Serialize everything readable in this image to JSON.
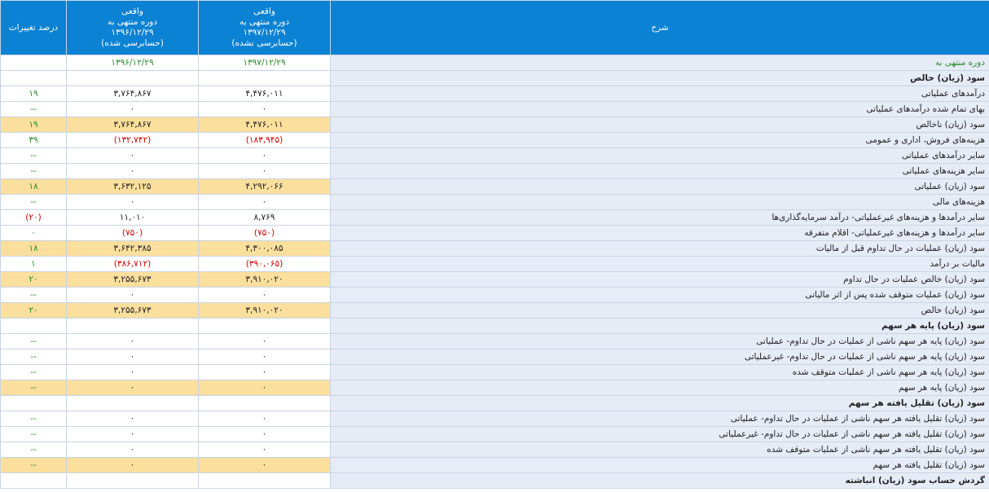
{
  "header": {
    "change_label": "درصد تغییرات",
    "col_prev": {
      "line1": "واقعی",
      "line2": "دوره منتهی به",
      "line3": "۱۳۹۶/۱۲/۲۹",
      "line4": "(حسابرسی شده)"
    },
    "col_curr": {
      "line1": "واقعی",
      "line2": "دوره منتهی به",
      "line3": "۱۳۹۷/۱۲/۲۹",
      "line4": "(حسابرسی نشده)"
    },
    "desc_label": "شرح"
  },
  "rows": [
    {
      "label": "دوره منتهی به",
      "curr": "۱۳۹۷/۱۲/۲۹",
      "prev": "۱۳۹۶/۱۲/۲۹",
      "change": "",
      "type": "period"
    },
    {
      "label": "سود (زیان) خالص",
      "curr": "",
      "prev": "",
      "change": "",
      "type": "bold"
    },
    {
      "label": "درآمدهای عملیاتی",
      "curr": "۴,۴۷۶,۰۱۱",
      "prev": "۳,۷۶۴,۸۶۷",
      "change": "۱۹",
      "type": "normal"
    },
    {
      "label": "بهای تمام شده درآمدهای عملیاتی",
      "curr": "۰",
      "prev": "۰",
      "change": "--",
      "type": "normal"
    },
    {
      "label": "سود (زیان) ناخالص",
      "curr": "۴,۴۷۶,۰۱۱",
      "prev": "۳,۷۶۴,۸۶۷",
      "change": "۱۹",
      "type": "hl"
    },
    {
      "label": "هزینه‌های فروش، اداری و عمومی",
      "curr": "(۱۸۳,۹۴۵)",
      "prev": "(۱۳۲,۷۴۲)",
      "change": "۳۹",
      "type": "normal"
    },
    {
      "label": "سایر درآمدهای عملیاتی",
      "curr": "۰",
      "prev": "۰",
      "change": "--",
      "type": "normal"
    },
    {
      "label": "سایر هزینه‌های عملیاتی",
      "curr": "۰",
      "prev": "۰",
      "change": "--",
      "type": "normal"
    },
    {
      "label": "سود (زیان) عملیاتی",
      "curr": "۴,۲۹۲,۰۶۶",
      "prev": "۳,۶۳۲,۱۲۵",
      "change": "۱۸",
      "type": "hl"
    },
    {
      "label": "هزینه‌های مالی",
      "curr": "۰",
      "prev": "۰",
      "change": "--",
      "type": "normal"
    },
    {
      "label": "سایر درآمدها و هزینه‌های غیرعملیاتی- درآمد سرمایه‌گذاری‌ها",
      "curr": "۸,۷۶۹",
      "prev": "۱۱,۰۱۰",
      "change": "(۲۰)",
      "type": "normal"
    },
    {
      "label": "سایر درآمدها و هزینه‌های غیرعملیاتی- اقلام متفرقه",
      "curr": "(۷۵۰)",
      "prev": "(۷۵۰)",
      "change": "۰",
      "type": "normal"
    },
    {
      "label": "سود (زیان) عملیات در حال تداوم قبل از مالیات",
      "curr": "۴,۳۰۰,۰۸۵",
      "prev": "۳,۶۴۲,۳۸۵",
      "change": "۱۸",
      "type": "hl"
    },
    {
      "label": "مالیات بر درآمد",
      "curr": "(۳۹۰,۰۶۵)",
      "prev": "(۳۸۶,۷۱۲)",
      "change": "۱",
      "type": "normal"
    },
    {
      "label": "سود (زیان) خالص عملیات در حال تداوم",
      "curr": "۳,۹۱۰,۰۲۰",
      "prev": "۳,۲۵۵,۶۷۳",
      "change": "۲۰",
      "type": "hl"
    },
    {
      "label": "سود (زیان) عملیات متوقف شده پس از اثر مالیاتی",
      "curr": "۰",
      "prev": "۰",
      "change": "--",
      "type": "normal"
    },
    {
      "label": "سود (زیان) خالص",
      "curr": "۳,۹۱۰,۰۲۰",
      "prev": "۳,۲۵۵,۶۷۳",
      "change": "۲۰",
      "type": "hl"
    },
    {
      "label": "سود (زیان) پایه هر سهم",
      "curr": "",
      "prev": "",
      "change": "",
      "type": "bold"
    },
    {
      "label": "سود (زیان) پایه هر سهم ناشی از عملیات در حال تداوم- عملیاتی",
      "curr": "۰",
      "prev": "۰",
      "change": "--",
      "type": "normal"
    },
    {
      "label": "سود (زیان) پایه هر سهم ناشی از عملیات در حال تداوم- غیرعملیاتی",
      "curr": "۰",
      "prev": "۰",
      "change": "--",
      "type": "normal"
    },
    {
      "label": "سود (زیان) پایه هر سهم ناشی از عملیات متوقف شده",
      "curr": "۰",
      "prev": "۰",
      "change": "--",
      "type": "normal"
    },
    {
      "label": "سود (زیان) پایه هر سهم",
      "curr": "۰",
      "prev": "۰",
      "change": "--",
      "type": "hl"
    },
    {
      "label": "سود (زیان) تقلیل یافته هر سهم",
      "curr": "",
      "prev": "",
      "change": "",
      "type": "bold"
    },
    {
      "label": "سود (زیان) تقلیل یافته هر سهم ناشی از عملیات در حال تداوم- عملیاتی",
      "curr": "۰",
      "prev": "۰",
      "change": "--",
      "type": "normal"
    },
    {
      "label": "سود (زیان) تقلیل یافته هر سهم ناشی از عملیات در حال تداوم- غیرعملیاتی",
      "curr": "۰",
      "prev": "۰",
      "change": "--",
      "type": "normal"
    },
    {
      "label": "سود (زیان) تقلیل یافته هر سهم ناشی از عملیات متوقف شده",
      "curr": "۰",
      "prev": "۰",
      "change": "--",
      "type": "normal"
    },
    {
      "label": "سود (زیان) تقلیل یافته هر سهم",
      "curr": "۰",
      "prev": "۰",
      "change": "--",
      "type": "hl"
    },
    {
      "label": "گردش حساب سود (زیان) انباشته",
      "curr": "",
      "prev": "",
      "change": "",
      "type": "bold"
    }
  ]
}
